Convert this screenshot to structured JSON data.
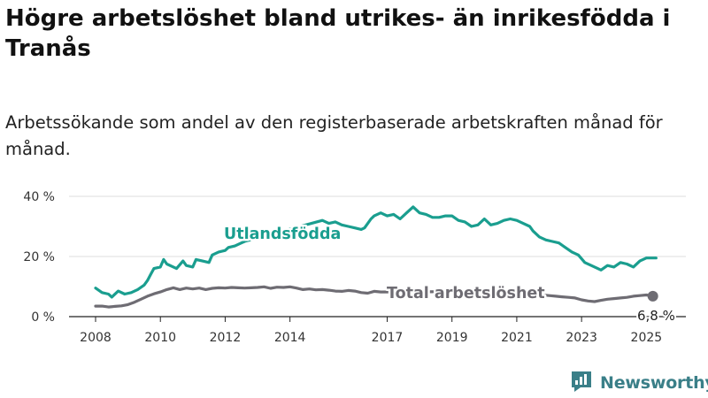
{
  "title": "Högre arbetslöshet bland utrikes- än inrikesfödda i Tranås",
  "subtitle": "Arbetssökande som andel av den registerbaserade arbetskraften månad för månad.",
  "brand": "Newsworthy",
  "colors": {
    "foreign": "#1a9e8f",
    "total": "#6e6c73",
    "grid": "#dddddd",
    "brand": "#3a7f88"
  },
  "chart_data": {
    "type": "line",
    "x_unit": "year",
    "xlim": [
      2008,
      2025.4
    ],
    "ylim": [
      0,
      40
    ],
    "y_ticks": [
      {
        "value": 0,
        "label": "0 %"
      },
      {
        "value": 20,
        "label": "20 %"
      },
      {
        "value": 40,
        "label": "40 %"
      }
    ],
    "x_ticks": [
      {
        "value": 2008,
        "label": "2008"
      },
      {
        "value": 2010,
        "label": "2010"
      },
      {
        "value": 2012,
        "label": "2012"
      },
      {
        "value": 2014,
        "label": "2014"
      },
      {
        "value": 2017,
        "label": "2017"
      },
      {
        "value": 2019,
        "label": "2019"
      },
      {
        "value": 2021,
        "label": "2021"
      },
      {
        "value": 2023,
        "label": "2023"
      },
      {
        "value": 2025,
        "label": "2025"
      }
    ],
    "grid": true,
    "series": [
      {
        "name": "Utlandsfödda",
        "color": "#1a9e8f",
        "points": [
          [
            2008.0,
            9.5
          ],
          [
            2008.2,
            8.0
          ],
          [
            2008.4,
            7.5
          ],
          [
            2008.5,
            6.5
          ],
          [
            2008.7,
            8.5
          ],
          [
            2008.9,
            7.5
          ],
          [
            2009.1,
            8.0
          ],
          [
            2009.3,
            9.0
          ],
          [
            2009.5,
            10.5
          ],
          [
            2009.6,
            12.0
          ],
          [
            2009.7,
            14.0
          ],
          [
            2009.8,
            16.0
          ],
          [
            2010.0,
            16.5
          ],
          [
            2010.1,
            19.0
          ],
          [
            2010.2,
            17.5
          ],
          [
            2010.4,
            16.5
          ],
          [
            2010.5,
            16.0
          ],
          [
            2010.7,
            18.5
          ],
          [
            2010.8,
            17.0
          ],
          [
            2011.0,
            16.5
          ],
          [
            2011.1,
            19.0
          ],
          [
            2011.3,
            18.5
          ],
          [
            2011.5,
            18.0
          ],
          [
            2011.6,
            20.5
          ],
          [
            2011.8,
            21.5
          ],
          [
            2012.0,
            22.0
          ],
          [
            2012.1,
            23.0
          ],
          [
            2012.3,
            23.5
          ],
          [
            2012.5,
            24.5
          ],
          [
            2012.6,
            25.0
          ],
          [
            2015.0,
            32.0
          ],
          [
            2015.2,
            31.0
          ],
          [
            2015.4,
            31.5
          ],
          [
            2015.6,
            30.5
          ],
          [
            2015.8,
            30.0
          ],
          [
            2016.0,
            29.5
          ],
          [
            2016.2,
            29.0
          ],
          [
            2016.3,
            29.5
          ],
          [
            2016.5,
            32.5
          ],
          [
            2016.6,
            33.5
          ],
          [
            2016.8,
            34.5
          ],
          [
            2017.0,
            33.5
          ],
          [
            2017.2,
            34.0
          ],
          [
            2017.4,
            32.5
          ],
          [
            2017.6,
            34.5
          ],
          [
            2017.8,
            36.5
          ],
          [
            2018.0,
            34.5
          ],
          [
            2018.2,
            34.0
          ],
          [
            2018.4,
            33.0
          ],
          [
            2018.6,
            33.0
          ],
          [
            2018.8,
            33.5
          ],
          [
            2019.0,
            33.5
          ],
          [
            2019.2,
            32.0
          ],
          [
            2019.4,
            31.5
          ],
          [
            2019.6,
            30.0
          ],
          [
            2019.8,
            30.5
          ],
          [
            2020.0,
            32.5
          ],
          [
            2020.2,
            30.5
          ],
          [
            2020.4,
            31.0
          ],
          [
            2020.6,
            32.0
          ],
          [
            2020.8,
            32.5
          ],
          [
            2021.0,
            32.0
          ],
          [
            2021.2,
            31.0
          ],
          [
            2021.4,
            30.0
          ],
          [
            2021.5,
            28.5
          ],
          [
            2021.7,
            26.5
          ],
          [
            2021.9,
            25.5
          ],
          [
            2022.1,
            25.0
          ],
          [
            2022.3,
            24.5
          ],
          [
            2022.5,
            23.0
          ],
          [
            2022.7,
            21.5
          ],
          [
            2022.9,
            20.5
          ],
          [
            2023.1,
            18.0
          ],
          [
            2023.3,
            17.0
          ],
          [
            2023.5,
            16.0
          ],
          [
            2023.6,
            15.5
          ],
          [
            2023.8,
            17.0
          ],
          [
            2024.0,
            16.5
          ],
          [
            2024.2,
            18.0
          ],
          [
            2024.4,
            17.5
          ],
          [
            2024.6,
            16.5
          ],
          [
            2024.8,
            18.5
          ],
          [
            2025.0,
            19.5
          ],
          [
            2025.2,
            19.5
          ],
          [
            2025.3,
            19.5
          ]
        ]
      },
      {
        "name": "Total arbetslöshet",
        "color": "#6e6c73",
        "points": [
          [
            2008.0,
            3.5
          ],
          [
            2008.2,
            3.5
          ],
          [
            2008.4,
            3.2
          ],
          [
            2008.6,
            3.4
          ],
          [
            2008.8,
            3.6
          ],
          [
            2009.0,
            4.0
          ],
          [
            2009.2,
            4.8
          ],
          [
            2009.4,
            5.8
          ],
          [
            2009.6,
            6.8
          ],
          [
            2009.8,
            7.6
          ],
          [
            2010.0,
            8.2
          ],
          [
            2010.2,
            9.0
          ],
          [
            2010.4,
            9.6
          ],
          [
            2010.6,
            9.0
          ],
          [
            2010.8,
            9.5
          ],
          [
            2011.0,
            9.2
          ],
          [
            2011.2,
            9.5
          ],
          [
            2011.4,
            9.0
          ],
          [
            2011.6,
            9.4
          ],
          [
            2011.8,
            9.6
          ],
          [
            2012.0,
            9.5
          ],
          [
            2012.2,
            9.7
          ],
          [
            2012.4,
            9.6
          ],
          [
            2012.6,
            9.5
          ],
          [
            2012.8,
            9.6
          ],
          [
            2013.0,
            9.7
          ],
          [
            2013.2,
            9.9
          ],
          [
            2013.4,
            9.4
          ],
          [
            2013.6,
            9.8
          ],
          [
            2013.8,
            9.7
          ],
          [
            2014.0,
            9.9
          ],
          [
            2014.2,
            9.5
          ],
          [
            2014.4,
            9.0
          ],
          [
            2014.6,
            9.2
          ],
          [
            2014.8,
            8.9
          ],
          [
            2015.0,
            9.0
          ],
          [
            2015.2,
            8.8
          ],
          [
            2015.4,
            8.5
          ],
          [
            2015.6,
            8.4
          ],
          [
            2015.8,
            8.7
          ],
          [
            2016.0,
            8.5
          ],
          [
            2016.2,
            8.0
          ],
          [
            2016.4,
            7.8
          ],
          [
            2016.6,
            8.4
          ],
          [
            2016.8,
            8.2
          ],
          [
            2020.8,
            8.4
          ],
          [
            2021.0,
            8.5
          ],
          [
            2021.2,
            8.2
          ],
          [
            2021.4,
            7.8
          ],
          [
            2021.6,
            7.4
          ],
          [
            2021.8,
            7.2
          ],
          [
            2022.0,
            7.0
          ],
          [
            2022.2,
            6.8
          ],
          [
            2022.4,
            6.6
          ],
          [
            2022.6,
            6.4
          ],
          [
            2022.8,
            6.2
          ],
          [
            2023.0,
            5.6
          ],
          [
            2023.2,
            5.2
          ],
          [
            2023.4,
            5.0
          ],
          [
            2023.6,
            5.4
          ],
          [
            2023.8,
            5.8
          ],
          [
            2024.0,
            6.0
          ],
          [
            2024.2,
            6.2
          ],
          [
            2024.4,
            6.4
          ],
          [
            2024.6,
            6.8
          ],
          [
            2024.8,
            7.0
          ],
          [
            2025.0,
            7.2
          ],
          [
            2025.2,
            6.8
          ]
        ]
      }
    ],
    "labels": {
      "foreign": "Utlandsfödda",
      "total": "Total arbetslöshet",
      "end_value": "6,8 %"
    },
    "end_point": {
      "x": 2025.2,
      "y": 6.8
    }
  }
}
